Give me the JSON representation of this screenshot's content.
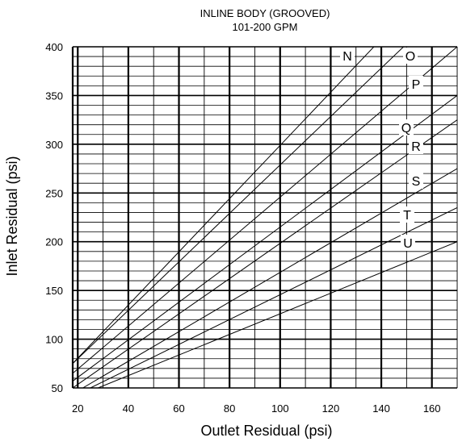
{
  "chart_data": {
    "type": "line",
    "title": "INLINE BODY (GROOVED)",
    "subtitle": "101-200 GPM",
    "xlabel": "Outlet Residual (psi)",
    "ylabel": "Inlet Residual (psi)",
    "xlim": [
      18,
      170
    ],
    "ylim": [
      50,
      400
    ],
    "x_ticks": [
      20,
      40,
      60,
      80,
      100,
      120,
      140,
      160
    ],
    "y_ticks": [
      50,
      100,
      150,
      200,
      250,
      300,
      350,
      400
    ],
    "grid": true,
    "series": [
      {
        "name": "N",
        "points": [
          [
            18,
            75
          ],
          [
            140,
            408
          ]
        ]
      },
      {
        "name": "O",
        "points": [
          [
            18,
            75
          ],
          [
            152,
            408
          ]
        ]
      },
      {
        "name": "P",
        "points": [
          [
            18,
            65
          ],
          [
            170,
            400
          ]
        ]
      },
      {
        "name": "Q",
        "points": [
          [
            18,
            57
          ],
          [
            170,
            350
          ]
        ]
      },
      {
        "name": "R",
        "points": [
          [
            18,
            50
          ],
          [
            170,
            325
          ]
        ]
      },
      {
        "name": "S",
        "points": [
          [
            22,
            50
          ],
          [
            170,
            275
          ]
        ]
      },
      {
        "name": "T",
        "points": [
          [
            25,
            50
          ],
          [
            170,
            235
          ]
        ]
      },
      {
        "name": "U",
        "points": [
          [
            28,
            50
          ],
          [
            170,
            200
          ]
        ]
      }
    ]
  }
}
